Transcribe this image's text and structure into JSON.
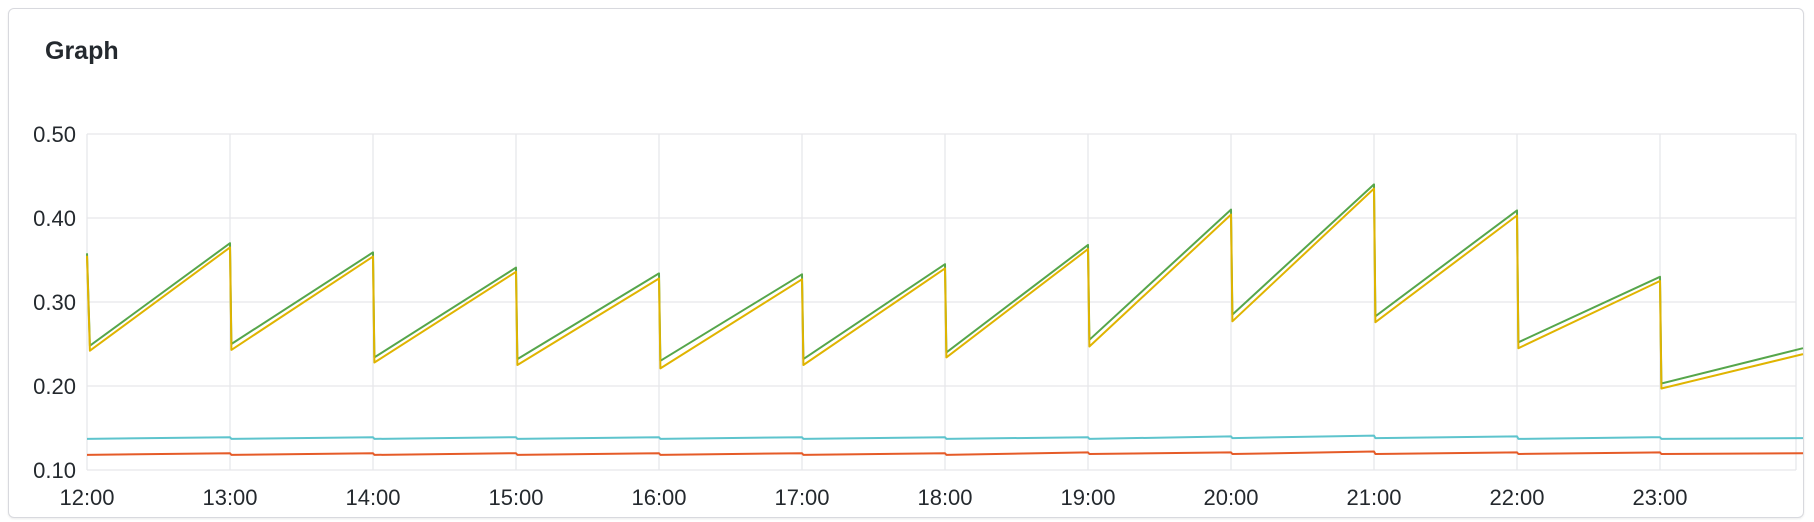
{
  "panel": {
    "title": "Graph"
  },
  "chart_data": {
    "type": "line",
    "title": "Graph",
    "xlabel": "",
    "ylabel": "",
    "x_ticks": [
      "12:00",
      "13:00",
      "14:00",
      "15:00",
      "16:00",
      "17:00",
      "18:00",
      "19:00",
      "20:00",
      "21:00",
      "22:00",
      "23:00"
    ],
    "y_ticks": [
      "0.10",
      "0.20",
      "0.30",
      "0.40",
      "0.50"
    ],
    "xlim": [
      0,
      12
    ],
    "ylim": [
      0.1,
      0.5
    ],
    "grid": true,
    "legend": "none",
    "series": [
      {
        "color": "#56a64b",
        "x": [
          0,
          0.02,
          1,
          1.01,
          2,
          2.01,
          3,
          3.01,
          4,
          4.01,
          5,
          5.01,
          6,
          6.01,
          7,
          7.01,
          8,
          8.01,
          9,
          9.01,
          10,
          10.01,
          11,
          11.01,
          12
        ],
        "y": [
          0.358,
          0.248,
          0.37,
          0.25,
          0.359,
          0.234,
          0.341,
          0.232,
          0.334,
          0.23,
          0.333,
          0.232,
          0.345,
          0.24,
          0.368,
          0.255,
          0.41,
          0.285,
          0.44,
          0.283,
          0.409,
          0.252,
          0.33,
          0.203,
          0.245
        ]
      },
      {
        "color": "#e0b400",
        "x": [
          0,
          0.02,
          1,
          1.01,
          2,
          2.01,
          3,
          3.01,
          4,
          4.01,
          5,
          5.01,
          6,
          6.01,
          7,
          7.01,
          8,
          8.01,
          9,
          9.01,
          10,
          10.01,
          11,
          11.01,
          12
        ],
        "y": [
          0.355,
          0.242,
          0.365,
          0.243,
          0.354,
          0.228,
          0.336,
          0.225,
          0.328,
          0.221,
          0.327,
          0.225,
          0.34,
          0.234,
          0.363,
          0.247,
          0.404,
          0.277,
          0.435,
          0.276,
          0.403,
          0.245,
          0.325,
          0.197,
          0.238
        ]
      },
      {
        "color": "#5ec4cd",
        "x": [
          0,
          1,
          1.01,
          2,
          2.01,
          3,
          3.01,
          4,
          4.01,
          5,
          5.01,
          6,
          6.01,
          7,
          7.01,
          8,
          8.01,
          9,
          9.01,
          10,
          10.01,
          11,
          11.01,
          12
        ],
        "y": [
          0.137,
          0.139,
          0.137,
          0.139,
          0.137,
          0.139,
          0.137,
          0.139,
          0.137,
          0.139,
          0.137,
          0.139,
          0.137,
          0.139,
          0.137,
          0.14,
          0.138,
          0.141,
          0.138,
          0.14,
          0.137,
          0.139,
          0.137,
          0.138
        ]
      },
      {
        "color": "#e55b28",
        "x": [
          0,
          1,
          1.01,
          2,
          2.01,
          3,
          3.01,
          4,
          4.01,
          5,
          5.01,
          6,
          6.01,
          7,
          7.01,
          8,
          8.01,
          9,
          9.01,
          10,
          10.01,
          11,
          11.01,
          12
        ],
        "y": [
          0.118,
          0.12,
          0.118,
          0.12,
          0.118,
          0.12,
          0.118,
          0.12,
          0.118,
          0.12,
          0.118,
          0.12,
          0.118,
          0.121,
          0.119,
          0.121,
          0.119,
          0.122,
          0.119,
          0.121,
          0.119,
          0.121,
          0.119,
          0.12
        ]
      }
    ]
  }
}
